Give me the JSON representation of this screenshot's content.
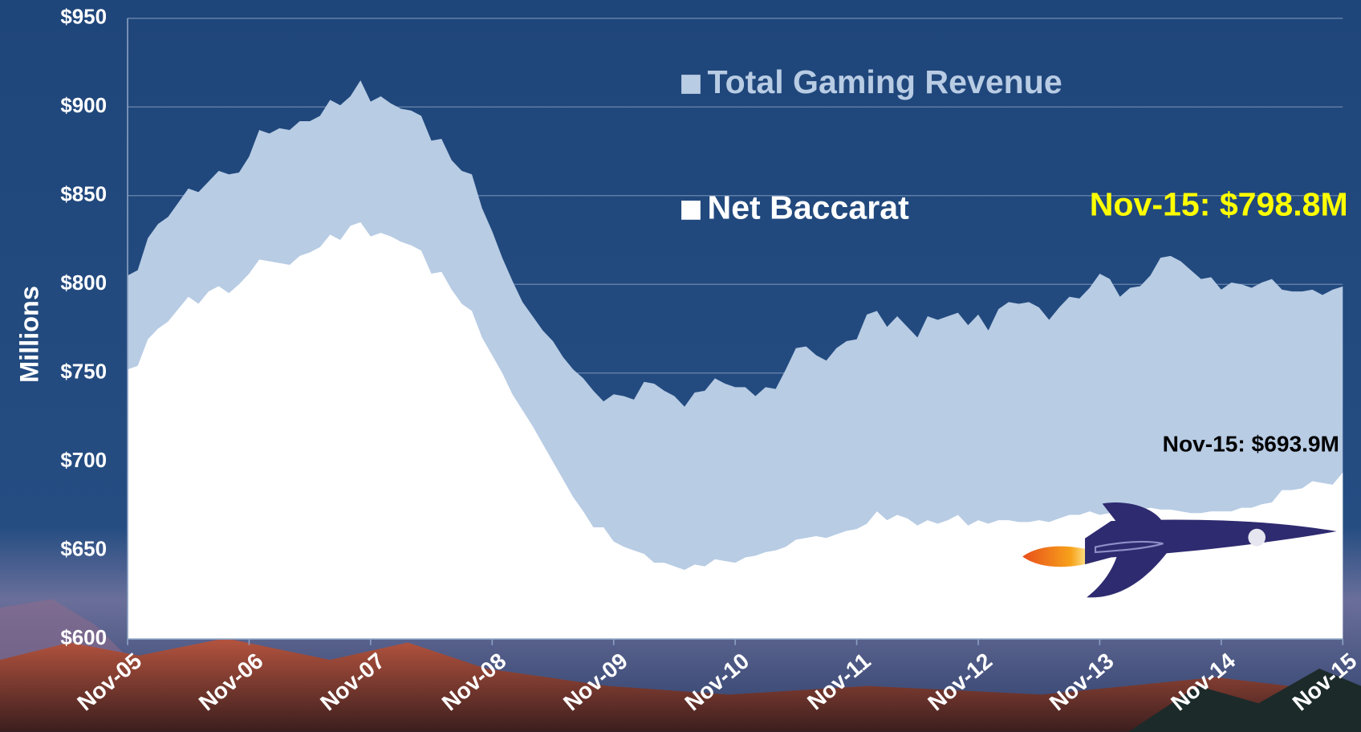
{
  "chart_data": {
    "type": "area",
    "ylabel": "Millions",
    "categories": [
      "Nov-05",
      null,
      null,
      null,
      null,
      null,
      null,
      null,
      null,
      null,
      null,
      null,
      "Nov-06",
      null,
      null,
      null,
      null,
      null,
      null,
      null,
      null,
      null,
      null,
      null,
      "Nov-07",
      null,
      null,
      null,
      null,
      null,
      null,
      null,
      null,
      null,
      null,
      null,
      "Nov-08",
      null,
      null,
      null,
      null,
      null,
      null,
      null,
      null,
      null,
      null,
      null,
      "Nov-09",
      null,
      null,
      null,
      null,
      null,
      null,
      null,
      null,
      null,
      null,
      null,
      "Nov-10",
      null,
      null,
      null,
      null,
      null,
      null,
      null,
      null,
      null,
      null,
      null,
      "Nov-11",
      null,
      null,
      null,
      null,
      null,
      null,
      null,
      null,
      null,
      null,
      null,
      "Nov-12",
      null,
      null,
      null,
      null,
      null,
      null,
      null,
      null,
      null,
      null,
      null,
      "Nov-13",
      null,
      null,
      null,
      null,
      null,
      null,
      null,
      null,
      null,
      null,
      null,
      "Nov-14",
      null,
      null,
      null,
      null,
      null,
      null,
      null,
      null,
      null,
      null,
      null,
      "Nov-15"
    ],
    "series": [
      {
        "name": "Total Gaming Revenue",
        "color": "#b8cce4",
        "values": [
          805,
          808,
          826,
          834,
          838,
          846,
          854,
          852,
          858,
          864,
          862,
          863,
          872,
          887,
          885,
          888,
          887,
          892,
          892,
          895,
          904,
          901,
          906,
          915,
          903,
          906,
          902,
          899,
          898,
          895,
          881,
          882,
          870,
          864,
          862,
          843,
          830,
          815,
          802,
          790,
          782,
          774,
          768,
          759,
          752,
          747,
          740,
          734,
          738,
          737,
          735,
          745,
          744,
          740,
          737,
          731,
          739,
          740,
          747,
          744,
          742,
          742,
          737,
          742,
          741,
          752,
          764,
          765,
          760,
          757,
          764,
          768,
          769,
          783,
          785,
          776,
          782,
          776,
          770,
          782,
          780,
          782,
          784,
          777,
          783,
          774,
          786,
          790,
          789,
          790,
          787,
          780,
          787,
          793,
          792,
          798,
          806,
          803,
          793,
          798,
          799,
          805,
          815,
          816,
          813,
          808,
          803,
          804,
          797,
          801,
          800,
          798,
          801,
          803,
          797,
          796,
          796,
          797,
          794,
          797,
          798.8
        ]
      },
      {
        "name": "Net Baccarat",
        "color": "#ffffff",
        "values": [
          752,
          754,
          769,
          775,
          779,
          786,
          793,
          789,
          796,
          799,
          795,
          800,
          806,
          814,
          813,
          812,
          811,
          816,
          818,
          821,
          828,
          825,
          833,
          835,
          827,
          829,
          827,
          824,
          822,
          819,
          806,
          807,
          797,
          789,
          785,
          770,
          760,
          750,
          738,
          729,
          720,
          710,
          700,
          690,
          680,
          672,
          663,
          663,
          655,
          652,
          650,
          648,
          643,
          643,
          641,
          639,
          642,
          641,
          645,
          644,
          643,
          646,
          647,
          649,
          650,
          652,
          656,
          657,
          658,
          657,
          659,
          661,
          662,
          665,
          672,
          667,
          670,
          668,
          664,
          667,
          665,
          667,
          670,
          664,
          667,
          665,
          667,
          667,
          666,
          666,
          667,
          666,
          668,
          670,
          670,
          672,
          670,
          671,
          672,
          672,
          673,
          674,
          673,
          673,
          672,
          671,
          671,
          672,
          672,
          672,
          674,
          674,
          676,
          677,
          684,
          684,
          685,
          689,
          688,
          687,
          693.9
        ]
      }
    ],
    "annotations": [
      {
        "text": "Nov-15: $798.8M",
        "color": "#ffff00"
      },
      {
        "text": "Nov-15: $693.9M",
        "color": "#000000"
      }
    ],
    "ylim": [
      600,
      950
    ],
    "yticks": [
      {
        "value": 600,
        "label": "$600"
      },
      {
        "value": 650,
        "label": "$650"
      },
      {
        "value": 700,
        "label": "$700"
      },
      {
        "value": 750,
        "label": "$750"
      },
      {
        "value": 800,
        "label": "$800"
      },
      {
        "value": 850,
        "label": "$850"
      },
      {
        "value": 900,
        "label": "$900"
      },
      {
        "value": 950,
        "label": "$950"
      }
    ],
    "grid": true
  }
}
